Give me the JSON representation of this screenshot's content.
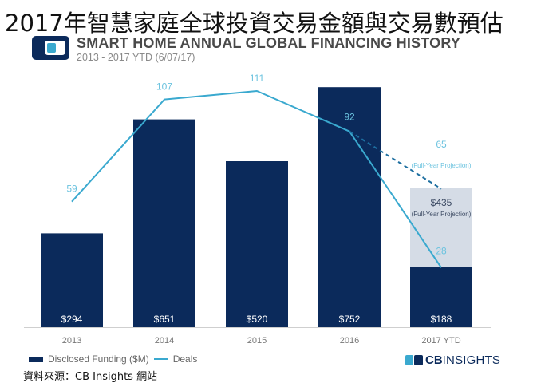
{
  "header": {
    "cn_title": "2017年智慧家庭全球投資交易金額與交易數預估",
    "title": "SMART HOME ANNUAL GLOBAL FINANCING HISTORY",
    "subtitle": "2013 - 2017 YTD (6/07/17)"
  },
  "chart_data": {
    "type": "bar",
    "categories": [
      "2013",
      "2014",
      "2015",
      "2016",
      "2017 YTD"
    ],
    "series": [
      {
        "name": "Disclosed Funding ($M)",
        "type": "bar",
        "values": [
          294,
          651,
          520,
          752,
          188
        ],
        "labels": [
          "$294",
          "$651",
          "$520",
          "$752",
          "$188"
        ]
      },
      {
        "name": "Deals",
        "type": "line",
        "values": [
          59,
          107,
          111,
          92,
          28
        ]
      }
    ],
    "projection": {
      "funding_value": 435,
      "funding_label": "$435",
      "funding_note": "(Full-Year Projection)",
      "deals_value": 65,
      "deals_label": "65",
      "deals_note": "(Full-Year Projection)"
    },
    "ylim_funding": [
      0,
      800
    ],
    "ylim_deals": [
      0,
      120
    ],
    "colors": {
      "bar": "#0b2a5b",
      "projection_bar": "#d5dce6",
      "line": "#3aa9cf",
      "bar_label": "#ffffff",
      "line_label": "#6cc3df",
      "axis_label": "#777777"
    }
  },
  "legend": {
    "funding": "Disclosed Funding ($M)",
    "deals": "Deals"
  },
  "brand": {
    "cb": "CB",
    "insights": "INSIGHTS"
  },
  "source": "資料來源：CB Insights 網站"
}
